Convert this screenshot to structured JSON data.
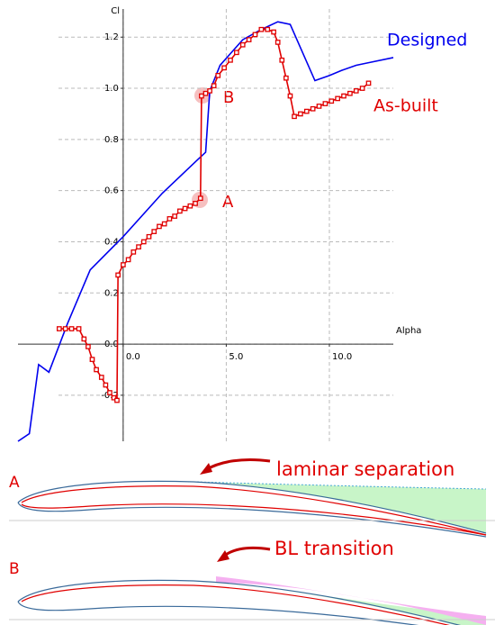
{
  "chart_data": {
    "type": "line",
    "xlabel": "Alpha",
    "ylabel": "Cl",
    "xlim": [
      -5.1,
      13.1
    ],
    "ylim": [
      -0.38,
      1.31
    ],
    "xticks": [
      {
        "value": 0,
        "label": "0.0"
      },
      {
        "value": 5,
        "label": "5.0"
      },
      {
        "value": 10,
        "label": "10.0"
      }
    ],
    "yticks": [
      -0.2,
      {
        "value": 0,
        "label": "0.0"
      },
      0.2,
      0.4,
      0.6,
      0.8,
      {
        "value": 1,
        "label": "1.0"
      },
      1.2
    ],
    "grid": true,
    "series": [
      {
        "name": "Designed",
        "color": "#0000ee",
        "marker": false,
        "x": [
          -5.1,
          -4.55,
          -4.1,
          -3.6,
          -2.7,
          -1.6,
          0,
          1.9,
          3.6,
          4.0,
          4.2,
          4.7,
          5.8,
          6.7,
          7.5,
          8.1,
          9.3,
          10.0,
          10.6,
          11.3,
          11.9,
          13.1
        ],
        "values": [
          -0.38,
          -0.35,
          -0.08,
          -0.11,
          0.08,
          0.29,
          0.42,
          0.59,
          0.72,
          0.75,
          0.99,
          1.09,
          1.19,
          1.23,
          1.26,
          1.25,
          1.03,
          1.05,
          1.07,
          1.09,
          1.1,
          1.12
        ]
      },
      {
        "name": "As-built",
        "color": "#e00000",
        "marker": true,
        "x": [
          -3.1,
          -2.8,
          -2.5,
          -2.15,
          -1.9,
          -1.7,
          -1.5,
          -1.3,
          -1.05,
          -0.85,
          -0.65,
          -0.45,
          -0.3,
          -0.25,
          0,
          0.25,
          0.5,
          0.75,
          1.0,
          1.25,
          1.5,
          1.75,
          2.0,
          2.25,
          2.5,
          2.75,
          3.0,
          3.25,
          3.5,
          3.75,
          3.8,
          4.0,
          4.2,
          4.4,
          4.6,
          4.9,
          5.2,
          5.5,
          5.8,
          6.1,
          6.4,
          6.7,
          7.0,
          7.3,
          7.5,
          7.7,
          7.9,
          8.1,
          8.3,
          8.6,
          8.9,
          9.2,
          9.5,
          9.8,
          10.1,
          10.4,
          10.7,
          11.0,
          11.3,
          11.6,
          11.9
        ],
        "values": [
          0.06,
          0.06,
          0.06,
          0.06,
          0.02,
          -0.01,
          -0.06,
          -0.1,
          -0.13,
          -0.16,
          -0.19,
          -0.21,
          -0.22,
          0.27,
          0.31,
          0.33,
          0.36,
          0.38,
          0.4,
          0.42,
          0.44,
          0.46,
          0.47,
          0.49,
          0.5,
          0.52,
          0.53,
          0.54,
          0.55,
          0.57,
          0.97,
          0.98,
          0.99,
          1.01,
          1.05,
          1.08,
          1.11,
          1.14,
          1.17,
          1.19,
          1.21,
          1.23,
          1.23,
          1.22,
          1.18,
          1.11,
          1.04,
          0.97,
          0.89,
          0.9,
          0.91,
          0.92,
          0.93,
          0.94,
          0.95,
          0.96,
          0.97,
          0.98,
          0.99,
          1.0,
          1.02
        ]
      }
    ],
    "annotations": [
      "A",
      "B"
    ]
  },
  "diagram": {
    "panels": [
      {
        "label": "A",
        "caption": "laminar separation"
      },
      {
        "label": "B",
        "caption": "BL transition"
      }
    ]
  }
}
